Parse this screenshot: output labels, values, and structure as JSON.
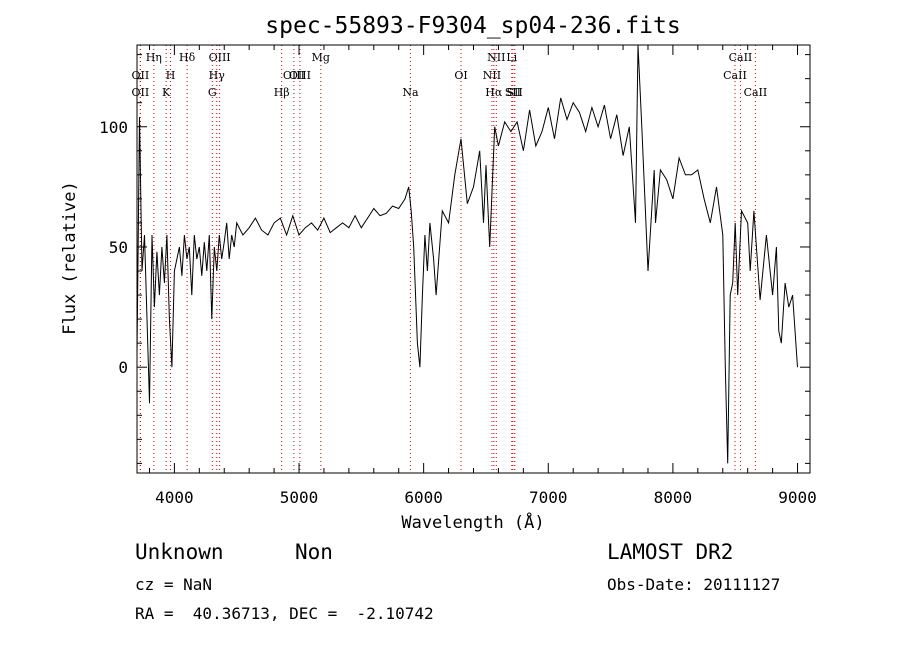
{
  "chart_data": {
    "type": "line",
    "title": "spec-55893-F9304_sp04-236.fits",
    "xlabel": "Wavelength (Å)",
    "ylabel": "Flux (relative)",
    "xlim": [
      3700,
      9100
    ],
    "ylim": [
      -44,
      134
    ],
    "x_ticks": [
      4000,
      5000,
      6000,
      7000,
      8000,
      9000
    ],
    "y_ticks": [
      0,
      50,
      100
    ],
    "grid": false,
    "series": [
      {
        "x": [
          3700,
          3720,
          3740,
          3760,
          3780,
          3800,
          3820,
          3840,
          3860,
          3880,
          3900,
          3920,
          3940,
          3960,
          3980,
          4000,
          4020,
          4040,
          4060,
          4080,
          4100,
          4120,
          4140,
          4160,
          4180,
          4200,
          4220,
          4240,
          4260,
          4280,
          4300,
          4320,
          4340,
          4360,
          4380,
          4400,
          4420,
          4440,
          4460,
          4480,
          4500,
          4550,
          4600,
          4650,
          4700,
          4750,
          4800,
          4850,
          4900,
          4950,
          5000,
          5050,
          5100,
          5150,
          5200,
          5250,
          5300,
          5350,
          5400,
          5450,
          5500,
          5550,
          5600,
          5650,
          5700,
          5750,
          5800,
          5850,
          5880,
          5900,
          5920,
          5950,
          5970,
          5990,
          6010,
          6030,
          6050,
          6080,
          6100,
          6150,
          6200,
          6250,
          6300,
          6350,
          6400,
          6450,
          6480,
          6500,
          6530,
          6550,
          6570,
          6600,
          6650,
          6700,
          6750,
          6800,
          6850,
          6900,
          6950,
          7000,
          7050,
          7100,
          7150,
          7200,
          7250,
          7300,
          7350,
          7400,
          7450,
          7500,
          7550,
          7600,
          7650,
          7700,
          7720,
          7750,
          7800,
          7850,
          7860,
          7900,
          7950,
          8000,
          8050,
          8100,
          8150,
          8200,
          8250,
          8300,
          8350,
          8400,
          8420,
          8440,
          8460,
          8480,
          8500,
          8520,
          8550,
          8600,
          8620,
          8650,
          8700,
          8750,
          8800,
          8830,
          8850,
          8870,
          8900,
          8930,
          8960,
          9000
        ],
        "y": [
          5,
          104,
          40,
          55,
          20,
          -15,
          55,
          25,
          48,
          30,
          50,
          35,
          55,
          20,
          0,
          40,
          45,
          50,
          38,
          55,
          45,
          50,
          30,
          55,
          45,
          50,
          38,
          52,
          40,
          55,
          20,
          50,
          40,
          55,
          45,
          52,
          60,
          45,
          55,
          50,
          60,
          55,
          58,
          62,
          57,
          55,
          60,
          62,
          55,
          63,
          55,
          58,
          60,
          57,
          62,
          56,
          58,
          60,
          58,
          63,
          58,
          62,
          66,
          63,
          64,
          67,
          66,
          70,
          75,
          65,
          50,
          10,
          0,
          30,
          55,
          40,
          60,
          45,
          30,
          65,
          60,
          80,
          95,
          68,
          75,
          90,
          60,
          84,
          50,
          75,
          100,
          92,
          102,
          98,
          102,
          90,
          107,
          92,
          98,
          108,
          95,
          112,
          103,
          110,
          106,
          98,
          108,
          100,
          109,
          95,
          105,
          88,
          100,
          60,
          134,
          100,
          40,
          82,
          60,
          82,
          78,
          70,
          87,
          80,
          80,
          82,
          70,
          60,
          75,
          55,
          0,
          -40,
          30,
          35,
          60,
          30,
          65,
          60,
          40,
          65,
          28,
          55,
          30,
          50,
          15,
          10,
          35,
          25,
          30,
          0
        ]
      }
    ],
    "spectral_lines": [
      {
        "label": "OII",
        "wavelength": 3727,
        "row": 2
      },
      {
        "label": "OII",
        "wavelength": 3727,
        "row": 3
      },
      {
        "label": "Hη",
        "wavelength": 3835,
        "row": 1
      },
      {
        "label": "K",
        "wavelength": 3934,
        "row": 3
      },
      {
        "label": "H",
        "wavelength": 3969,
        "row": 2
      },
      {
        "label": "Hδ",
        "wavelength": 4102,
        "row": 1
      },
      {
        "label": "G",
        "wavelength": 4304,
        "row": 3
      },
      {
        "label": "Hγ",
        "wavelength": 4340,
        "row": 2
      },
      {
        "label": "OIII",
        "wavelength": 4363,
        "row": 1
      },
      {
        "label": "Hβ",
        "wavelength": 4861,
        "row": 3
      },
      {
        "label": "OIII",
        "wavelength": 4959,
        "row": 2
      },
      {
        "label": "OIII",
        "wavelength": 5007,
        "row": 2
      },
      {
        "label": "Mg",
        "wavelength": 5175,
        "row": 1
      },
      {
        "label": "Na",
        "wavelength": 5894,
        "row": 3
      },
      {
        "label": "OI",
        "wavelength": 6300,
        "row": 2
      },
      {
        "label": "NII",
        "wavelength": 6548,
        "row": 2
      },
      {
        "label": "Hα",
        "wavelength": 6563,
        "row": 3
      },
      {
        "label": "NII",
        "wavelength": 6583,
        "row": 1
      },
      {
        "label": "Li",
        "wavelength": 6707,
        "row": 1
      },
      {
        "label": "SII",
        "wavelength": 6716,
        "row": 3
      },
      {
        "label": "SII",
        "wavelength": 6731,
        "row": 3
      },
      {
        "label": "CaII",
        "wavelength": 8498,
        "row": 2
      },
      {
        "label": "CaII",
        "wavelength": 8542,
        "row": 1
      },
      {
        "label": "CaII",
        "wavelength": 8662,
        "row": 3
      }
    ],
    "line_marker_color": "#cc0000"
  },
  "info": {
    "object_class": "Unknown",
    "subclass": "Non",
    "survey": "LAMOST DR2",
    "cz": "cz = NaN",
    "obs_date": "Obs-Date: 20111127",
    "coords": "RA =  40.36713, DEC =  -2.10742"
  }
}
